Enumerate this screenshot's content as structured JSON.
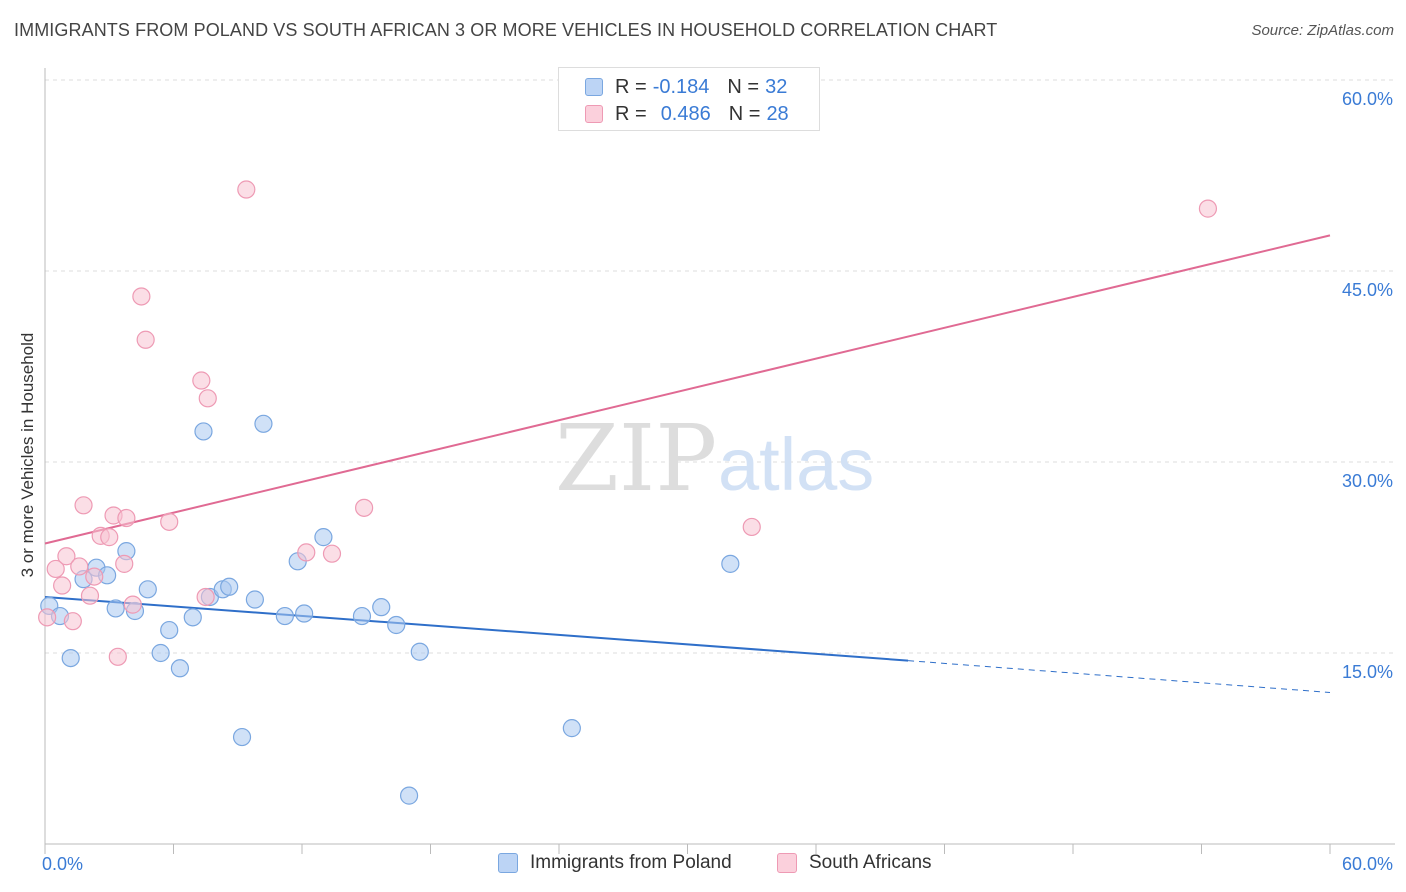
{
  "title": "IMMIGRANTS FROM POLAND VS SOUTH AFRICAN 3 OR MORE VEHICLES IN HOUSEHOLD CORRELATION CHART",
  "source": "Source: ZipAtlas.com",
  "watermark": {
    "zip": "ZIP",
    "atlas": "atlas"
  },
  "legend": {
    "rows": [
      {
        "r_label": "R =",
        "r_value": "-0.184",
        "n_label": "N =",
        "n_value": "32"
      },
      {
        "r_label": "R =",
        "r_value": "0.486",
        "n_label": "N =",
        "n_value": "28"
      }
    ]
  },
  "chart_data": {
    "type": "scatter",
    "title": "IMMIGRANTS FROM POLAND VS SOUTH AFRICAN 3 OR MORE VEHICLES IN HOUSEHOLD CORRELATION CHART",
    "xlabel": "",
    "ylabel": "3 or more Vehicles in Household",
    "xlim": [
      0,
      60
    ],
    "ylim": [
      0,
      60
    ],
    "x_tick_labels": [
      "0.0%",
      "60.0%"
    ],
    "y_ticks": [
      15,
      30,
      45,
      60
    ],
    "y_tick_labels": [
      "15.0%",
      "30.0%",
      "45.0%",
      "60.0%"
    ],
    "grid": true,
    "legend_position": "bottom",
    "series": [
      {
        "name": "Immigrants from Poland",
        "color": "#a9c8f0",
        "stroke": "#7aa7e0",
        "line_color": "#2f6fc9",
        "trend": {
          "x0": 0,
          "y0": 19.4,
          "x1": 40.3,
          "y1": 14.4,
          "dash_to_x": 60,
          "dash_to_y": 11.9
        },
        "points": [
          [
            0.2,
            18.7
          ],
          [
            0.7,
            17.9
          ],
          [
            1.2,
            14.6
          ],
          [
            1.8,
            20.8
          ],
          [
            2.4,
            21.7
          ],
          [
            2.9,
            21.1
          ],
          [
            3.3,
            18.5
          ],
          [
            3.8,
            23.0
          ],
          [
            4.2,
            18.3
          ],
          [
            4.8,
            20.0
          ],
          [
            5.4,
            15.0
          ],
          [
            5.8,
            16.8
          ],
          [
            6.3,
            13.8
          ],
          [
            6.9,
            17.8
          ],
          [
            7.4,
            32.4
          ],
          [
            7.7,
            19.4
          ],
          [
            8.3,
            20.0
          ],
          [
            8.6,
            20.2
          ],
          [
            9.2,
            8.4
          ],
          [
            9.8,
            19.2
          ],
          [
            10.2,
            33.0
          ],
          [
            11.2,
            17.9
          ],
          [
            11.8,
            22.2
          ],
          [
            12.1,
            18.1
          ],
          [
            13.0,
            24.1
          ],
          [
            14.8,
            17.9
          ],
          [
            15.7,
            18.6
          ],
          [
            16.4,
            17.2
          ],
          [
            17.0,
            3.8
          ],
          [
            17.5,
            15.1
          ],
          [
            24.6,
            9.1
          ],
          [
            32.0,
            22.0
          ]
        ]
      },
      {
        "name": "South Africans",
        "color": "#f7c3d2",
        "stroke": "#ee9ab4",
        "line_color": "#e06a93",
        "trend": {
          "x0": 0,
          "y0": 23.6,
          "x1": 60,
          "y1": 47.8
        },
        "points": [
          [
            0.1,
            17.8
          ],
          [
            0.5,
            21.6
          ],
          [
            0.8,
            20.3
          ],
          [
            1.0,
            22.6
          ],
          [
            1.3,
            17.5
          ],
          [
            1.6,
            21.8
          ],
          [
            1.8,
            26.6
          ],
          [
            2.1,
            19.5
          ],
          [
            2.3,
            21.0
          ],
          [
            2.6,
            24.2
          ],
          [
            3.0,
            24.1
          ],
          [
            3.2,
            25.8
          ],
          [
            3.4,
            14.7
          ],
          [
            3.7,
            22.0
          ],
          [
            3.8,
            25.6
          ],
          [
            4.1,
            18.8
          ],
          [
            4.5,
            43.0
          ],
          [
            4.7,
            39.6
          ],
          [
            5.8,
            25.3
          ],
          [
            7.3,
            36.4
          ],
          [
            7.6,
            35.0
          ],
          [
            7.5,
            19.4
          ],
          [
            9.4,
            51.4
          ],
          [
            12.2,
            22.9
          ],
          [
            13.4,
            22.8
          ],
          [
            14.9,
            26.4
          ],
          [
            33.0,
            24.9
          ],
          [
            54.3,
            49.9
          ]
        ]
      }
    ]
  }
}
